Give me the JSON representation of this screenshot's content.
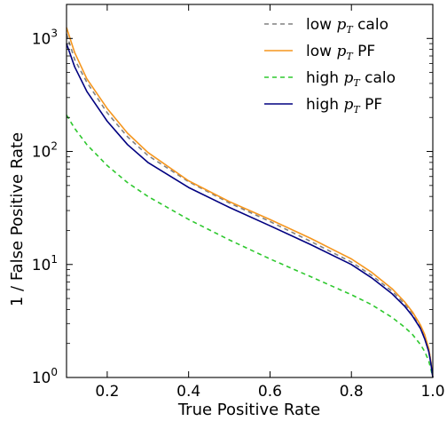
{
  "chart_data": {
    "type": "line",
    "title": "",
    "xlabel": "True Positive Rate",
    "ylabel": "1 / False Positive Rate",
    "xlim": [
      0.1,
      1.0
    ],
    "ylim": [
      1,
      2000
    ],
    "yscale": "log",
    "grid": false,
    "legend_position": "top-right",
    "x_ticks": [
      {
        "value": 0.2,
        "label": "0.2"
      },
      {
        "value": 0.4,
        "label": "0.4"
      },
      {
        "value": 0.6,
        "label": "0.6"
      },
      {
        "value": 0.8,
        "label": "0.8"
      },
      {
        "value": 1.0,
        "label": "1.0"
      }
    ],
    "y_ticks": [
      {
        "value": 1,
        "base": "10",
        "exp": "0"
      },
      {
        "value": 10,
        "base": "10",
        "exp": "1"
      },
      {
        "value": 100,
        "base": "10",
        "exp": "2"
      },
      {
        "value": 1000,
        "base": "10",
        "exp": "3"
      }
    ],
    "series": [
      {
        "name": "low pT calo",
        "label_prefix": "low ",
        "label_math": "p",
        "label_sub": "T",
        "label_suffix": "  calo",
        "color": "#808080",
        "dash": "5,4",
        "x": [
          0.1,
          0.12,
          0.15,
          0.2,
          0.25,
          0.3,
          0.4,
          0.5,
          0.6,
          0.7,
          0.8,
          0.85,
          0.9,
          0.93,
          0.95,
          0.97,
          0.98,
          0.99,
          0.995,
          1.0
        ],
        "y": [
          1100,
          650,
          410,
          220,
          135,
          92,
          54,
          35,
          24,
          16,
          10.5,
          8.0,
          5.8,
          4.5,
          3.7,
          2.8,
          2.3,
          1.8,
          1.4,
          1.0
        ]
      },
      {
        "name": "low pT PF",
        "label_prefix": "low ",
        "label_math": "p",
        "label_sub": "T",
        "label_suffix": " PF",
        "color": "#f5961e",
        "dash": "",
        "x": [
          0.1,
          0.12,
          0.15,
          0.2,
          0.25,
          0.3,
          0.4,
          0.5,
          0.6,
          0.7,
          0.8,
          0.85,
          0.9,
          0.93,
          0.95,
          0.97,
          0.98,
          0.99,
          0.995,
          1.0
        ],
        "y": [
          1250,
          750,
          440,
          240,
          145,
          98,
          55,
          36,
          25,
          17,
          11.2,
          8.5,
          6.1,
          4.7,
          3.8,
          2.9,
          2.4,
          1.8,
          1.4,
          1.0
        ]
      },
      {
        "name": "high pT calo",
        "label_prefix": "high ",
        "label_math": "p",
        "label_sub": "T",
        "label_suffix": " calo",
        "color": "#2ec82e",
        "dash": "5,4",
        "x": [
          0.1,
          0.12,
          0.15,
          0.2,
          0.25,
          0.3,
          0.4,
          0.5,
          0.6,
          0.7,
          0.8,
          0.85,
          0.9,
          0.93,
          0.95,
          0.97,
          0.98,
          0.99,
          0.995,
          1.0
        ],
        "y": [
          210,
          160,
          115,
          75,
          53,
          40,
          25,
          16.5,
          11.2,
          7.8,
          5.4,
          4.4,
          3.4,
          2.8,
          2.4,
          1.95,
          1.7,
          1.4,
          1.2,
          1.0
        ]
      },
      {
        "name": "high pT PF",
        "label_prefix": "high ",
        "label_math": "p",
        "label_sub": "T",
        "label_suffix": " PF",
        "color": "#000080",
        "dash": "",
        "x": [
          0.1,
          0.12,
          0.15,
          0.2,
          0.25,
          0.3,
          0.4,
          0.5,
          0.6,
          0.7,
          0.8,
          0.85,
          0.9,
          0.93,
          0.95,
          0.97,
          0.98,
          0.99,
          0.995,
          1.0
        ],
        "y": [
          900,
          560,
          340,
          185,
          115,
          80,
          48,
          32,
          22,
          15,
          10,
          7.6,
          5.5,
          4.3,
          3.5,
          2.7,
          2.2,
          1.7,
          1.35,
          1.0
        ]
      }
    ]
  }
}
